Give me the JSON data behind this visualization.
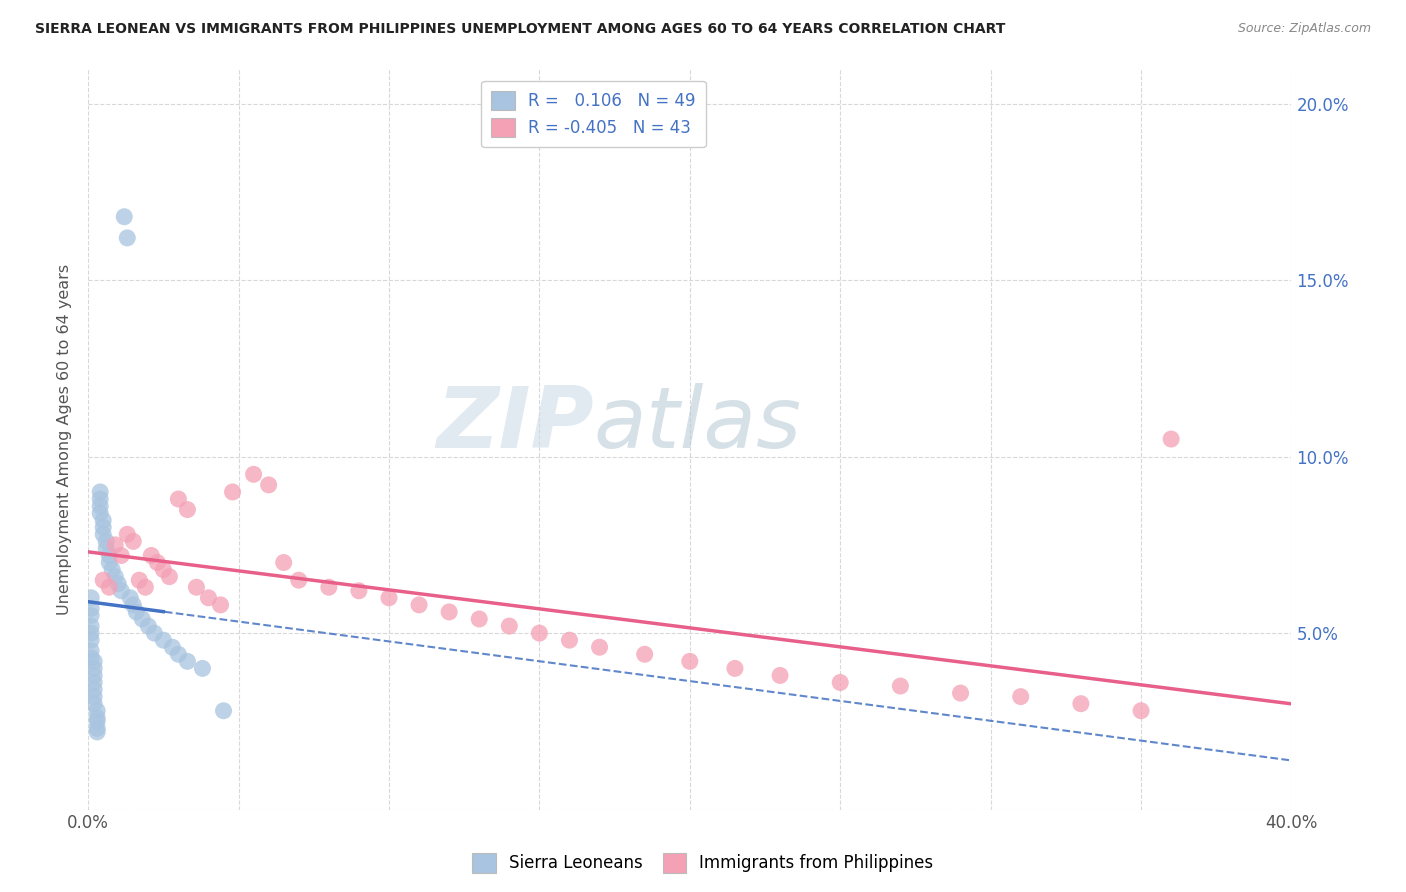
{
  "title": "SIERRA LEONEAN VS IMMIGRANTS FROM PHILIPPINES UNEMPLOYMENT AMONG AGES 60 TO 64 YEARS CORRELATION CHART",
  "source": "Source: ZipAtlas.com",
  "ylabel": "Unemployment Among Ages 60 to 64 years",
  "xlim": [
    0.0,
    0.4
  ],
  "ylim": [
    0.0,
    0.21
  ],
  "sierra_color": "#a8c4e0",
  "phil_color": "#f4a0b5",
  "sierra_line_color": "#4472c4",
  "phil_line_color": "#e8608a",
  "sierra_R": 0.106,
  "sierra_N": 49,
  "phil_R": -0.405,
  "phil_N": 43,
  "sierra_x": [
    0.001,
    0.001,
    0.001,
    0.001,
    0.001,
    0.001,
    0.001,
    0.001,
    0.002,
    0.002,
    0.002,
    0.002,
    0.002,
    0.002,
    0.002,
    0.003,
    0.003,
    0.003,
    0.003,
    0.003,
    0.004,
    0.004,
    0.004,
    0.004,
    0.005,
    0.005,
    0.005,
    0.006,
    0.006,
    0.007,
    0.007,
    0.008,
    0.009,
    0.01,
    0.011,
    0.012,
    0.013,
    0.014,
    0.015,
    0.016,
    0.018,
    0.02,
    0.022,
    0.025,
    0.028,
    0.03,
    0.033,
    0.038,
    0.045
  ],
  "sierra_y": [
    0.06,
    0.057,
    0.055,
    0.052,
    0.05,
    0.048,
    0.045,
    0.043,
    0.042,
    0.04,
    0.038,
    0.036,
    0.034,
    0.032,
    0.03,
    0.028,
    0.026,
    0.025,
    0.023,
    0.022,
    0.09,
    0.088,
    0.086,
    0.084,
    0.082,
    0.08,
    0.078,
    0.076,
    0.074,
    0.072,
    0.07,
    0.068,
    0.066,
    0.064,
    0.062,
    0.168,
    0.162,
    0.06,
    0.058,
    0.056,
    0.054,
    0.052,
    0.05,
    0.048,
    0.046,
    0.044,
    0.042,
    0.04,
    0.028
  ],
  "phil_x": [
    0.005,
    0.007,
    0.009,
    0.011,
    0.013,
    0.015,
    0.017,
    0.019,
    0.021,
    0.023,
    0.025,
    0.027,
    0.03,
    0.033,
    0.036,
    0.04,
    0.044,
    0.048,
    0.055,
    0.06,
    0.065,
    0.07,
    0.08,
    0.09,
    0.1,
    0.11,
    0.12,
    0.13,
    0.14,
    0.15,
    0.16,
    0.17,
    0.185,
    0.2,
    0.215,
    0.23,
    0.25,
    0.27,
    0.29,
    0.31,
    0.33,
    0.35,
    0.36
  ],
  "phil_y": [
    0.065,
    0.063,
    0.075,
    0.072,
    0.078,
    0.076,
    0.065,
    0.063,
    0.072,
    0.07,
    0.068,
    0.066,
    0.088,
    0.085,
    0.063,
    0.06,
    0.058,
    0.09,
    0.095,
    0.092,
    0.07,
    0.065,
    0.063,
    0.062,
    0.06,
    0.058,
    0.056,
    0.054,
    0.052,
    0.05,
    0.048,
    0.046,
    0.044,
    0.042,
    0.04,
    0.038,
    0.036,
    0.035,
    0.033,
    0.032,
    0.03,
    0.028,
    0.105
  ],
  "background_color": "#ffffff",
  "grid_color": "#d8d8d8",
  "watermark_zip": "ZIP",
  "watermark_atlas": "atlas",
  "watermark_color_zip": "#c5d5e5",
  "watermark_color_atlas": "#b0c8d8"
}
